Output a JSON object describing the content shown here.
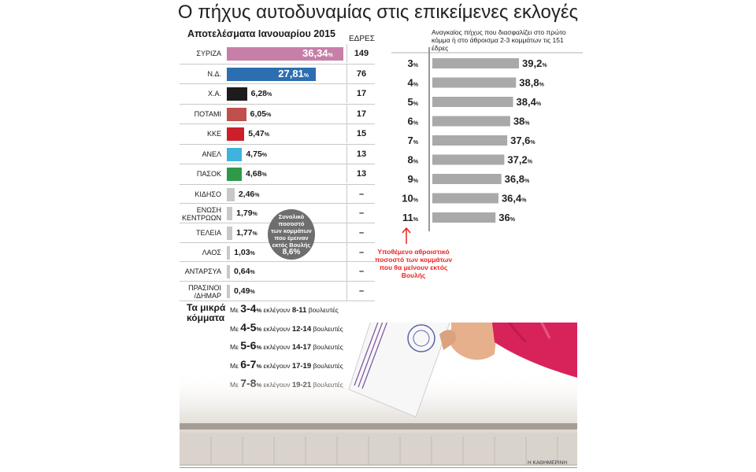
{
  "title": "Ο πήχυς αυτοδυναμίας στις επικείμενες εκλογές",
  "results_header": "Αποτελέσματα Ιανουαρίου 2015",
  "seats_header": "ΕΔΡΕΣ",
  "outside_badge": {
    "lines": [
      "Συνολικό",
      "ποσοστό",
      "των κομμάτων",
      "που έμειναν",
      "εκτός Βουλής"
    ],
    "value": "8,6%"
  },
  "small_parties": {
    "title": "Τα μικρά κόμματα",
    "lines": [
      {
        "prefix": "Με",
        "range": "3-4",
        "pct": "%",
        "mid": "εκλέγουν",
        "seats": "8-11",
        "suffix": "βουλευτές"
      },
      {
        "prefix": "Με",
        "range": "4-5",
        "pct": "%",
        "mid": "εκλέγουν",
        "seats": "12-14",
        "suffix": "βουλευτές"
      },
      {
        "prefix": "Με",
        "range": "5-6",
        "pct": "%",
        "mid": "εκλέγουν",
        "seats": "14-17",
        "suffix": "βουλευτές"
      },
      {
        "prefix": "Με",
        "range": "6-7",
        "pct": "%",
        "mid": "εκλέγουν",
        "seats": "17-19",
        "suffix": "βουλευτές"
      },
      {
        "prefix": "Με",
        "range": "7-8",
        "pct": "%",
        "mid": "εκλέγουν",
        "seats": "19-21",
        "suffix": "βουλευτές"
      }
    ]
  },
  "right_header": "Αναγκαίος πήχυς που διασφαλίζει στο πρώτο κόμμα ή στο άθροισμα 2-3 κομμάτων τις 151 έδρες",
  "annotation": "Υποθέμενο αθροιστικό ποσοστό των κομμάτων που θα μείνουν εκτός Βουλής",
  "credit": "Η ΚΑΘΗΜΕΡΙΝΗ",
  "colors": {
    "syriza": "#c77fa8",
    "nd": "#2c6fb0",
    "xa": "#1c1c1c",
    "potami": "#c0504d",
    "kke": "#cc1f2a",
    "anel": "#3fb3de",
    "pasok": "#2e9a48",
    "minor": "#c8c8c8",
    "threshold_bar": "#a9a9a9",
    "annotation": "#e22222"
  },
  "chart_data": [
    {
      "type": "bar",
      "title": "Αποτελέσματα Ιανουαρίου 2015",
      "categories": [
        "ΣΥΡΙΖΑ",
        "Ν.Δ.",
        "Χ.Α.",
        "ΠΟΤΑΜΙ",
        "ΚΚΕ",
        "ΑΝΕΛ",
        "ΠΑΣΟΚ",
        "ΚΙΔΗΣΟ",
        "ΕΝΩΣΗ ΚΕΝΤΡΩΩΝ",
        "ΤΕΛΕΙΑ",
        "ΛΑΟΣ",
        "ΑΝΤΑΡΣΥΑ",
        "ΠΡΑΣΙΝΟΙ /ΔΗΜΑΡ"
      ],
      "values": [
        36.34,
        27.81,
        6.28,
        6.05,
        5.47,
        4.75,
        4.68,
        2.46,
        1.79,
        1.77,
        1.03,
        0.64,
        0.49
      ],
      "labels": [
        "36,34",
        "27,81",
        "6,28",
        "6,05",
        "5,47",
        "4,75",
        "4,68",
        "2,46",
        "1,79",
        "1,77",
        "1,03",
        "0,64",
        "0,49"
      ],
      "unit": "%",
      "seats_label": "ΕΔΡΕΣ",
      "seats": [
        "149",
        "76",
        "17",
        "17",
        "15",
        "13",
        "13",
        "–",
        "–",
        "–",
        "–",
        "–",
        "–"
      ],
      "colors": [
        "#c77fa8",
        "#2c6fb0",
        "#1c1c1c",
        "#c0504d",
        "#cc1f2a",
        "#3fb3de",
        "#2e9a48",
        "#c8c8c8",
        "#c8c8c8",
        "#c8c8c8",
        "#c8c8c8",
        "#c8c8c8",
        "#c8c8c8"
      ],
      "orientation": "horizontal",
      "grid": false
    },
    {
      "type": "bar",
      "title": "Αναγκαίος πήχυς που διασφαλίζει στο πρώτο κόμμα ή στο άθροισμα 2-3 κομμάτων τις 151 έδρες",
      "categories": [
        "3",
        "4",
        "5",
        "6",
        "7",
        "8",
        "9",
        "10",
        "11"
      ],
      "values": [
        39.2,
        38.8,
        38.4,
        38.0,
        37.6,
        37.2,
        36.8,
        36.4,
        36.0
      ],
      "labels": [
        "39,2",
        "38,8",
        "38,4",
        "38",
        "37,6",
        "37,2",
        "36,8",
        "36,4",
        "36"
      ],
      "unit": "%",
      "orientation": "horizontal",
      "grid": false
    }
  ]
}
